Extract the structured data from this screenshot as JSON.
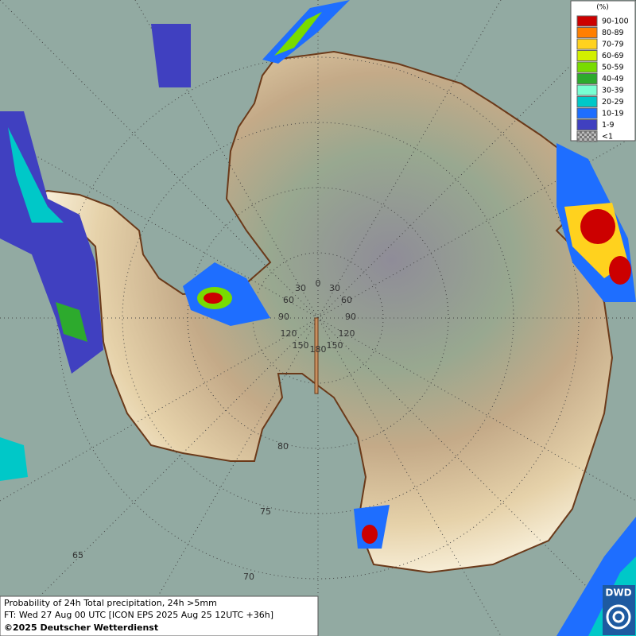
{
  "map": {
    "legend": {
      "title": "(%)",
      "items": [
        {
          "label": "90-100",
          "color": "#cc0000"
        },
        {
          "label": "80-89",
          "color": "#ff7f00"
        },
        {
          "label": "70-79",
          "color": "#ffd21e"
        },
        {
          "label": "60-69",
          "color": "#d2f000"
        },
        {
          "label": "50-59",
          "color": "#78dc00"
        },
        {
          "label": "40-49",
          "color": "#2daa2d"
        },
        {
          "label": "30-39",
          "color": "#78ffd2"
        },
        {
          "label": "20-29",
          "color": "#00c8c8"
        },
        {
          "label": "10-19",
          "color": "#1e6eff"
        },
        {
          "label": "1-9",
          "color": "#4040c0"
        },
        {
          "label": "<1",
          "color": "#9a9a9a"
        }
      ]
    },
    "longitude_labels": [
      "0",
      "30",
      "30",
      "60",
      "60",
      "90",
      "90",
      "120",
      "120",
      "150",
      "150",
      "180"
    ],
    "latitude_labels": [
      "80",
      "75",
      "70",
      "65"
    ],
    "caption": [
      "Probability of 24h Total precipitation, 24h >5mm",
      "FT: Wed 27 Aug 00 UTC [ICON EPS 2025 Aug 25 12UTC +36h]",
      "©2025 Deutscher Wetterdienst"
    ],
    "logo": "DWD"
  }
}
